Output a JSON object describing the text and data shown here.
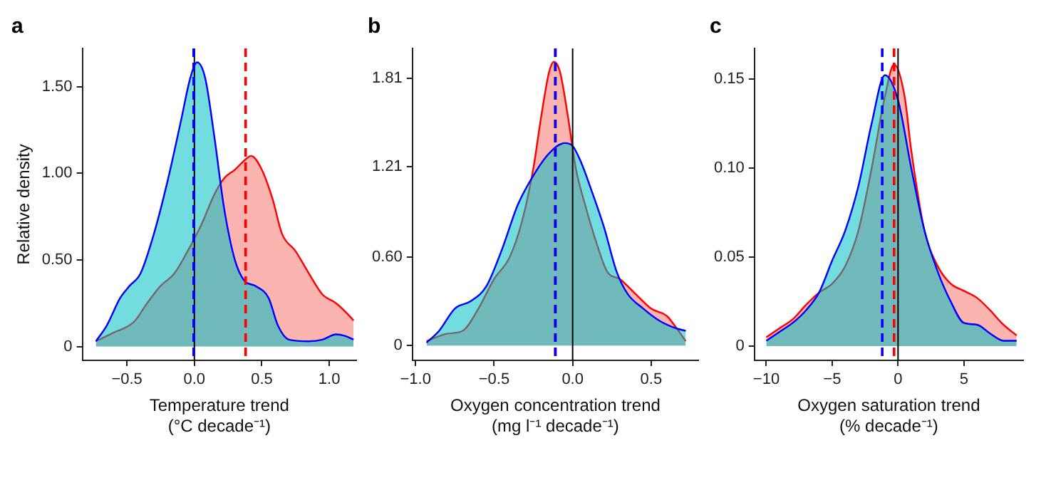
{
  "chart_data": [
    {
      "type": "area",
      "title": "a",
      "xlabel": "Temperature trend\n(°C decade⁻¹)",
      "ylabel": "Relative density",
      "xlim": [
        -0.83,
        1.2
      ],
      "ylim": [
        -0.08,
        1.72
      ],
      "xticks": [
        {
          "value": -0.5,
          "label": "−0.5"
        },
        {
          "value": 0,
          "label": "0.0"
        },
        {
          "value": 0.5,
          "label": "0.5"
        },
        {
          "value": 1,
          "label": "1.0"
        }
      ],
      "yticks": [
        0,
        {
          "value": 0.5,
          "label": "0.50"
        },
        {
          "value": 1,
          "label": "1.00"
        },
        {
          "value": 1.5,
          "label": "1.50"
        }
      ],
      "grid": false,
      "legend": false,
      "series": [
        {
          "color": "#ff0000",
          "x": [
            -0.73,
            -0.6,
            -0.45,
            -0.35,
            -0.25,
            -0.15,
            -0.05,
            0.05,
            0.15,
            0.22,
            0.3,
            0.38,
            0.42,
            0.5,
            0.58,
            0.65,
            0.75,
            0.85,
            0.95,
            1.05,
            1.12,
            1.18
          ],
          "values": [
            0.03,
            0.08,
            0.14,
            0.25,
            0.35,
            0.42,
            0.55,
            0.7,
            0.88,
            0.97,
            1.02,
            1.08,
            1.1,
            1.02,
            0.85,
            0.65,
            0.55,
            0.42,
            0.3,
            0.25,
            0.2,
            0.15
          ]
        },
        {
          "color": "#0000ff",
          "x": [
            -0.73,
            -0.65,
            -0.55,
            -0.48,
            -0.4,
            -0.3,
            -0.2,
            -0.1,
            -0.03,
            0.02,
            0.08,
            0.15,
            0.22,
            0.3,
            0.37,
            0.45,
            0.55,
            0.62,
            0.7,
            0.85,
            0.95,
            1.05,
            1.12,
            1.18
          ],
          "values": [
            0.03,
            0.12,
            0.28,
            0.35,
            0.42,
            0.65,
            0.95,
            1.3,
            1.55,
            1.64,
            1.55,
            1.2,
            0.8,
            0.5,
            0.38,
            0.35,
            0.28,
            0.12,
            0.04,
            0.03,
            0.04,
            0.07,
            0.06,
            0.04
          ]
        }
      ],
      "ref_lines": [
        {
          "axis": "x",
          "value": 0,
          "color": "#000000",
          "line_style": "solid"
        },
        {
          "axis": "x",
          "value": -0.005,
          "color": "#0000ff",
          "line_style": "dashed"
        },
        {
          "axis": "x",
          "value": 0.38,
          "color": "#ff0000",
          "line_style": "dashed"
        }
      ]
    },
    {
      "type": "area",
      "title": "b",
      "xlabel": "Oxygen concentration trend\n(mg l⁻¹ decade⁻¹)",
      "xlim": [
        -1.02,
        0.8
      ],
      "ylim": [
        -0.1,
        2.01
      ],
      "xticks": [
        {
          "value": -1,
          "label": "−1.0"
        },
        {
          "value": -0.5,
          "label": "−0.5"
        },
        {
          "value": 0,
          "label": "0.0"
        },
        {
          "value": 0.5,
          "label": "0.5"
        }
      ],
      "yticks": [
        0,
        {
          "value": 0.6,
          "label": "0.60"
        },
        1.21,
        1.81
      ],
      "grid": false,
      "legend": false,
      "series": [
        {
          "color": "#ff0000",
          "x": [
            -0.93,
            -0.8,
            -0.7,
            -0.6,
            -0.5,
            -0.4,
            -0.32,
            -0.25,
            -0.2,
            -0.15,
            -0.12,
            -0.08,
            -0.03,
            0.02,
            0.08,
            0.15,
            0.22,
            0.3,
            0.4,
            0.5,
            0.6,
            0.66,
            0.72
          ],
          "values": [
            0.03,
            0.08,
            0.1,
            0.25,
            0.45,
            0.6,
            0.85,
            1.2,
            1.55,
            1.85,
            1.92,
            1.85,
            1.55,
            1.2,
            0.95,
            0.7,
            0.5,
            0.45,
            0.35,
            0.25,
            0.2,
            0.12,
            0.03
          ]
        },
        {
          "color": "#0000ff",
          "x": [
            -0.93,
            -0.85,
            -0.75,
            -0.65,
            -0.55,
            -0.45,
            -0.35,
            -0.25,
            -0.15,
            -0.05,
            0,
            0.05,
            0.12,
            0.2,
            0.28,
            0.35,
            0.45,
            0.55,
            0.65,
            0.72
          ],
          "values": [
            0.02,
            0.1,
            0.25,
            0.3,
            0.4,
            0.65,
            0.95,
            1.15,
            1.3,
            1.37,
            1.35,
            1.25,
            1.05,
            0.8,
            0.5,
            0.35,
            0.25,
            0.17,
            0.12,
            0.1
          ]
        }
      ],
      "ref_lines": [
        {
          "axis": "x",
          "value": 0,
          "color": "#000000",
          "line_style": "solid"
        },
        {
          "axis": "x",
          "value": -0.11,
          "color": "#ff0000",
          "line_style": "dashed"
        },
        {
          "axis": "x",
          "value": -0.11,
          "color": "#0000ff",
          "line_style": "dashed"
        }
      ]
    },
    {
      "type": "area",
      "title": "c",
      "xlabel": "Oxygen saturation trend\n(% decade⁻¹)",
      "xlim": [
        -10.9,
        9.5
      ],
      "ylim": [
        -0.008,
        0.167
      ],
      "xticks": [
        {
          "value": -10,
          "label": "−10"
        },
        {
          "value": -5,
          "label": "−5"
        },
        0,
        5
      ],
      "yticks": [
        0,
        {
          "value": 0.05,
          "label": "0.05"
        },
        {
          "value": 0.1,
          "label": "0.10"
        },
        {
          "value": 0.15,
          "label": "0.15"
        }
      ],
      "grid": false,
      "legend": false,
      "series": [
        {
          "color": "#ff0000",
          "x": [
            -10,
            -9,
            -8,
            -7,
            -6,
            -5,
            -4,
            -3,
            -2,
            -1,
            -0.3,
            0.5,
            1,
            2,
            3,
            4,
            5,
            6,
            7,
            8,
            9
          ],
          "values": [
            0.005,
            0.01,
            0.015,
            0.023,
            0.03,
            0.035,
            0.045,
            0.065,
            0.1,
            0.14,
            0.158,
            0.14,
            0.11,
            0.065,
            0.045,
            0.035,
            0.031,
            0.027,
            0.02,
            0.012,
            0.006
          ]
        },
        {
          "color": "#0000ff",
          "x": [
            -10,
            -9,
            -8,
            -7,
            -6,
            -5,
            -4,
            -3,
            -2,
            -1,
            0,
            1,
            2,
            3,
            4,
            5,
            6,
            7,
            8,
            9
          ],
          "values": [
            0.003,
            0.008,
            0.013,
            0.02,
            0.03,
            0.048,
            0.065,
            0.09,
            0.125,
            0.152,
            0.138,
            0.1,
            0.065,
            0.042,
            0.025,
            0.013,
            0.012,
            0.007,
            0.003,
            0.003
          ]
        }
      ],
      "ref_lines": [
        {
          "axis": "x",
          "value": 0,
          "color": "#000000",
          "line_style": "solid"
        },
        {
          "axis": "x",
          "value": -1.2,
          "color": "#0000ff",
          "line_style": "dashed"
        },
        {
          "axis": "x",
          "value": -0.3,
          "color": "#ff0000",
          "line_style": "dashed"
        }
      ]
    }
  ]
}
